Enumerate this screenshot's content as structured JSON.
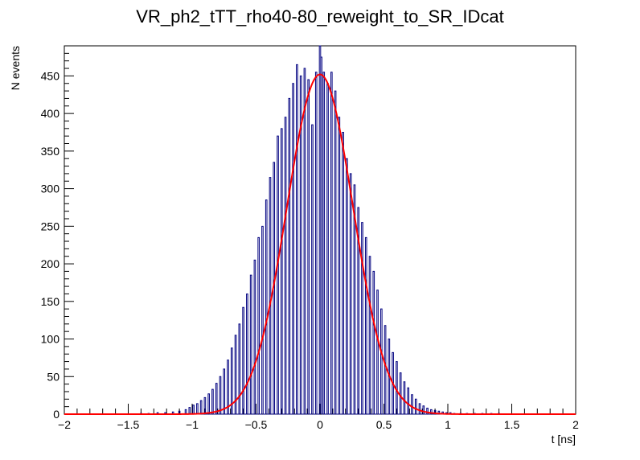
{
  "chart_data": {
    "type": "histogram",
    "title": "VR_ph2_tTT_rho40-80_reweight_to_SR_IDcat",
    "xlabel": "t [ns]",
    "ylabel": "N events",
    "xlim": [
      -2,
      2
    ],
    "ylim": [
      0,
      490
    ],
    "x_ticks": [
      -2,
      -1.5,
      -1,
      -0.5,
      0,
      0.5,
      1,
      1.5,
      2
    ],
    "x_tick_labels": [
      "−2",
      "−1.5",
      "−1",
      "−0.5",
      "0",
      "0.5",
      "1",
      "1.5",
      "2"
    ],
    "y_ticks": [
      0,
      50,
      100,
      150,
      200,
      250,
      300,
      350,
      400,
      450
    ],
    "y_tick_labels": [
      "0",
      "50",
      "100",
      "150",
      "200",
      "250",
      "300",
      "350",
      "400",
      "450"
    ],
    "series": [
      {
        "kind": "histogram",
        "color": "#000080",
        "bin_width": 0.01,
        "x": [
          -1.4,
          -1.34,
          -1.27,
          -1.21,
          -1.15,
          -1.1,
          -1.05,
          -1.02,
          -0.99,
          -0.96,
          -0.93,
          -0.9,
          -0.87,
          -0.84,
          -0.81,
          -0.78,
          -0.75,
          -0.72,
          -0.69,
          -0.66,
          -0.63,
          -0.6,
          -0.57,
          -0.54,
          -0.51,
          -0.48,
          -0.45,
          -0.42,
          -0.39,
          -0.36,
          -0.33,
          -0.3,
          -0.27,
          -0.24,
          -0.21,
          -0.18,
          -0.15,
          -0.12,
          -0.09,
          -0.06,
          -0.03,
          0.0,
          0.01,
          0.03,
          0.06,
          0.09,
          0.12,
          0.15,
          0.18,
          0.21,
          0.24,
          0.27,
          0.3,
          0.33,
          0.36,
          0.39,
          0.42,
          0.45,
          0.48,
          0.51,
          0.54,
          0.57,
          0.6,
          0.63,
          0.66,
          0.69,
          0.72,
          0.75,
          0.78,
          0.81,
          0.84,
          0.87,
          0.9,
          0.93,
          0.96,
          0.99,
          1.02,
          1.05,
          1.1,
          1.15,
          1.21,
          1.27,
          1.34,
          1.4
        ],
        "values": [
          1,
          1,
          2,
          2,
          3,
          4,
          6,
          9,
          12,
          14,
          18,
          22,
          27,
          33,
          41,
          50,
          60,
          72,
          88,
          105,
          120,
          142,
          160,
          185,
          205,
          235,
          250,
          285,
          315,
          335,
          370,
          380,
          395,
          420,
          440,
          465,
          450,
          460,
          445,
          385,
          455,
          490,
          475,
          455,
          440,
          455,
          430,
          395,
          375,
          340,
          320,
          305,
          275,
          255,
          235,
          210,
          190,
          165,
          140,
          118,
          100,
          82,
          70,
          55,
          43,
          35,
          26,
          20,
          14,
          11,
          8,
          6,
          5,
          4,
          3,
          2,
          2,
          1,
          1,
          1,
          1,
          1,
          1,
          1
        ]
      },
      {
        "kind": "fit",
        "color": "#ff0000",
        "amplitude": 452,
        "mean": 0.0,
        "sigma": 0.26
      }
    ],
    "grid": false,
    "legend": "none"
  }
}
